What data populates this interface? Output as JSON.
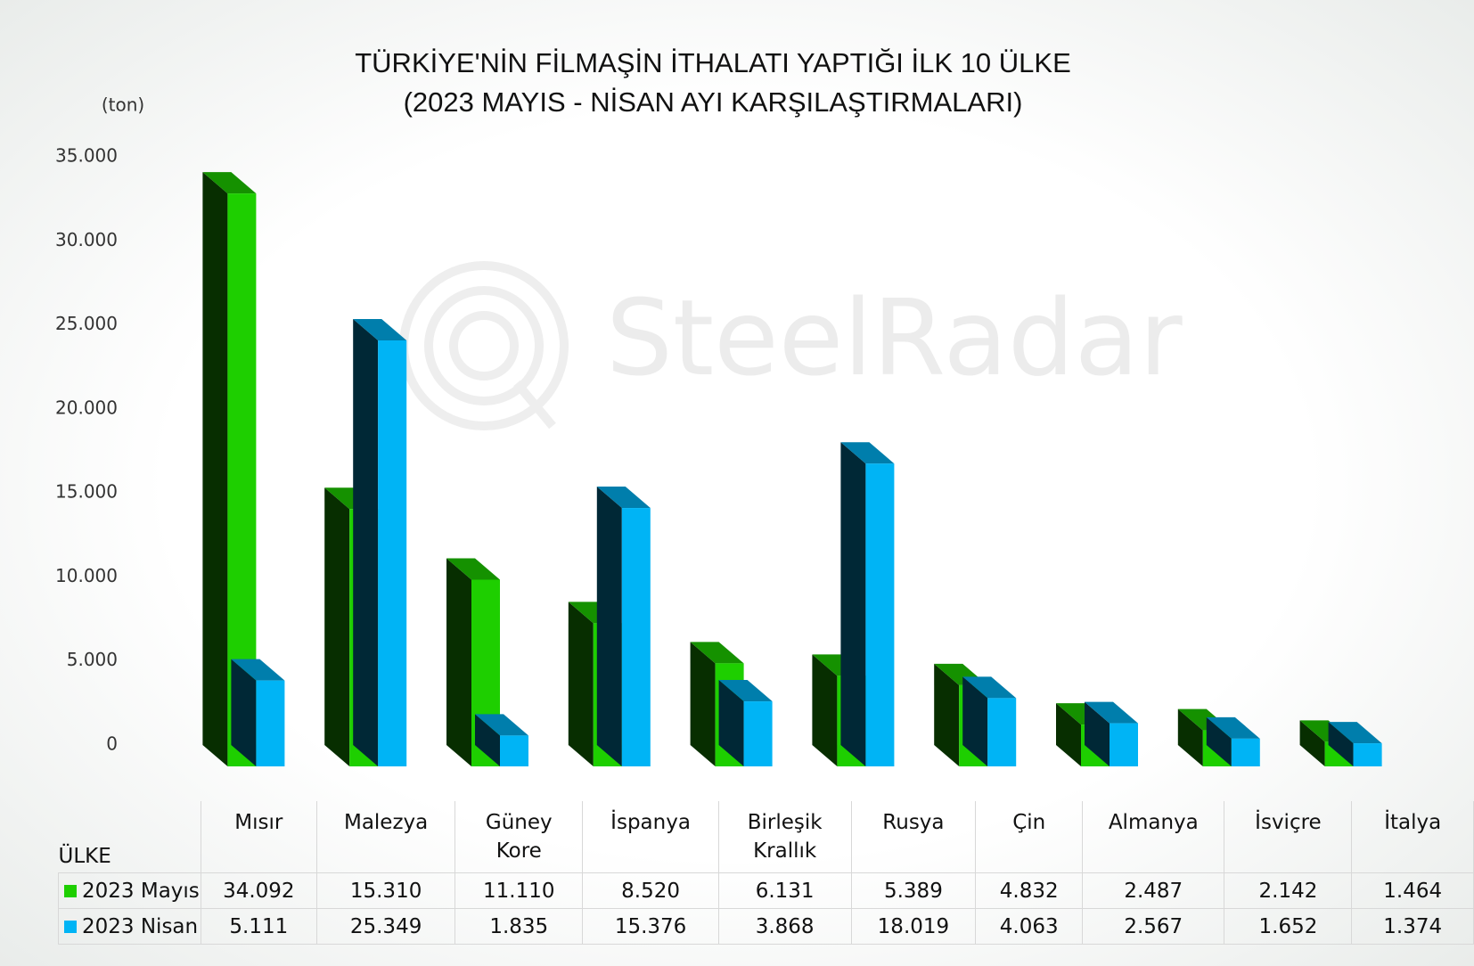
{
  "chart_data": {
    "type": "bar3d",
    "title": "TÜRKİYE'NİN FİLMAŞİN İTHALATI YAPTIĞI İLK 10 ÜLKE",
    "subtitle": "(2023 MAYIS - NİSAN AYI KARŞILAŞTIRMALARI)",
    "y_label": "(ton)",
    "table_header": "ÜLKE",
    "watermark": "SteelRadar",
    "categories": [
      "Mısır",
      "Malezya",
      "Güney Kore",
      "İspanya",
      "Birleşik Krallık",
      "Rusya",
      "Çin",
      "Almanya",
      "İsviçre",
      "İtalya"
    ],
    "series": [
      {
        "name": "2023 Mayıs",
        "color": "#1ecf00",
        "values": [
          34092,
          15310,
          11110,
          8520,
          6131,
          5389,
          4832,
          2487,
          2142,
          1464
        ],
        "value_labels": [
          "34.092",
          "15.310",
          "11.110",
          "8.520",
          "6.131",
          "5.389",
          "4.832",
          "2.487",
          "2.142",
          "1.464"
        ]
      },
      {
        "name": "2023 Nisan",
        "color": "#00b4f5",
        "values": [
          5111,
          25349,
          1835,
          15376,
          3868,
          18019,
          4063,
          2567,
          1652,
          1374
        ],
        "value_labels": [
          "5.111",
          "25.349",
          "1.835",
          "15.376",
          "3.868",
          "18.019",
          "4.063",
          "2.567",
          "1.652",
          "1.374"
        ]
      }
    ],
    "ylim": [
      0,
      35000
    ],
    "yticks": [
      0,
      {
        "value": 5000,
        "label": "5.000"
      },
      {
        "value": 10000,
        "label": "10.000"
      },
      {
        "value": 15000,
        "label": "15.000"
      },
      {
        "value": 20000,
        "label": "20.000"
      },
      {
        "value": 25000,
        "label": "25.000"
      },
      {
        "value": 30000,
        "label": "30.000"
      },
      {
        "value": 35000,
        "label": "35.000"
      }
    ],
    "grid": false
  }
}
